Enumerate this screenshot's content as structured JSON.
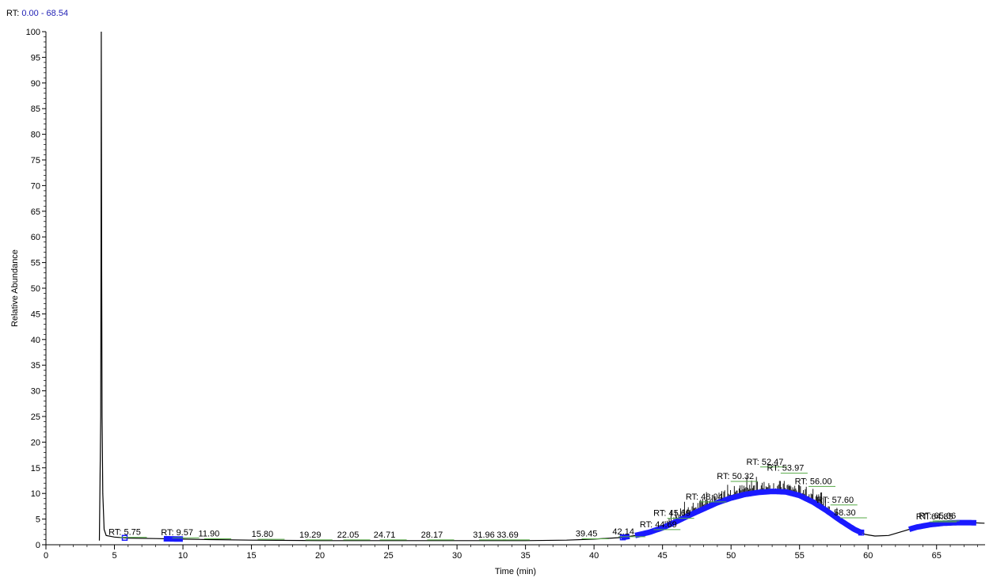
{
  "header": {
    "range_label": "RT:",
    "range_value": "0.00 - 68.54"
  },
  "colors": {
    "trace": "#000000",
    "marker": "#1a1aff",
    "peak_line": "#55aa44",
    "range_text": "#1f1fb4"
  },
  "chart_data": {
    "type": "line",
    "xlabel": "Time (min)",
    "ylabel": "Relative Abundance",
    "xlim": [
      0,
      68.54
    ],
    "ylim": [
      0,
      100
    ],
    "x_major_ticks": [
      0,
      5,
      10,
      15,
      20,
      25,
      30,
      35,
      40,
      45,
      50,
      55,
      60,
      65
    ],
    "y_major_ticks": [
      0,
      5,
      10,
      15,
      20,
      25,
      30,
      35,
      40,
      45,
      50,
      55,
      60,
      65,
      70,
      75,
      80,
      85,
      90,
      95,
      100
    ],
    "grid": false,
    "peak_labels": [
      {
        "text": "RT: 5.75",
        "x": 5.75,
        "y": 1.3
      },
      {
        "text": "RT: 9.57",
        "x": 9.57,
        "y": 1.2
      },
      {
        "text": "11.90",
        "x": 11.9,
        "y": 1.0
      },
      {
        "text": "15.80",
        "x": 15.8,
        "y": 0.9
      },
      {
        "text": "19.29",
        "x": 19.29,
        "y": 0.8
      },
      {
        "text": "22.05",
        "x": 22.05,
        "y": 0.8
      },
      {
        "text": "24.71",
        "x": 24.71,
        "y": 0.8
      },
      {
        "text": "28.17",
        "x": 28.17,
        "y": 0.8
      },
      {
        "text": "31.96",
        "x": 31.96,
        "y": 0.8
      },
      {
        "text": "33.69",
        "x": 33.69,
        "y": 0.8
      },
      {
        "text": "39.45",
        "x": 39.45,
        "y": 1.0
      },
      {
        "text": "42.14",
        "x": 42.14,
        "y": 1.4
      },
      {
        "text": "RT: 44.69",
        "x": 44.69,
        "y": 2.8
      },
      {
        "text": "RT: 45.69",
        "x": 45.69,
        "y": 5.0
      },
      {
        "text": "RT: 48.04",
        "x": 48.04,
        "y": 8.2
      },
      {
        "text": "RT: 50.32",
        "x": 50.32,
        "y": 12.2
      },
      {
        "text": "RT: 52.47",
        "x": 52.47,
        "y": 15.0
      },
      {
        "text": "RT: 53.97",
        "x": 53.97,
        "y": 13.8
      },
      {
        "text": "RT: 56.00",
        "x": 56.0,
        "y": 11.2
      },
      {
        "text": "RT: 57.60",
        "x": 57.6,
        "y": 7.6
      },
      {
        "text": "58.30",
        "x": 58.3,
        "y": 5.1
      },
      {
        "text": "RT: 64.85",
        "x": 64.85,
        "y": 4.3
      },
      {
        "text": "RT: 65.06",
        "x": 65.06,
        "y": 4.5
      }
    ],
    "series": [
      {
        "values": [
          [
            3.9,
            0.8
          ],
          [
            4.0,
            25
          ],
          [
            4.02,
            60
          ],
          [
            4.04,
            100
          ],
          [
            4.06,
            60
          ],
          [
            4.1,
            25
          ],
          [
            4.15,
            10
          ],
          [
            4.25,
            3
          ],
          [
            4.4,
            1.8
          ],
          [
            5,
            1.5
          ],
          [
            6,
            1.3
          ],
          [
            8,
            1.2
          ],
          [
            10,
            1.1
          ],
          [
            12,
            1.0
          ],
          [
            15,
            0.9
          ],
          [
            20,
            0.8
          ],
          [
            25,
            0.8
          ],
          [
            30,
            0.8
          ],
          [
            35,
            0.8
          ],
          [
            38,
            0.9
          ],
          [
            40,
            1.1
          ],
          [
            42,
            1.4
          ],
          [
            43,
            1.8
          ],
          [
            44,
            2.4
          ],
          [
            45,
            3.3
          ],
          [
            46,
            4.5
          ],
          [
            47,
            5.8
          ],
          [
            48,
            7.0
          ],
          [
            49,
            8.2
          ],
          [
            50,
            9.1
          ],
          [
            51,
            9.8
          ],
          [
            52,
            10.2
          ],
          [
            53,
            10.4
          ],
          [
            54,
            10.3
          ],
          [
            55,
            9.6
          ],
          [
            56,
            8.3
          ],
          [
            57,
            6.6
          ],
          [
            58,
            4.7
          ],
          [
            59,
            3.0
          ],
          [
            59.8,
            2.0
          ],
          [
            60.5,
            1.7
          ],
          [
            61.5,
            1.8
          ],
          [
            62.5,
            2.6
          ],
          [
            63.5,
            3.4
          ],
          [
            64.5,
            3.9
          ],
          [
            65.5,
            4.2
          ],
          [
            66.5,
            4.3
          ],
          [
            67.5,
            4.3
          ],
          [
            68.5,
            4.2
          ]
        ]
      }
    ]
  }
}
